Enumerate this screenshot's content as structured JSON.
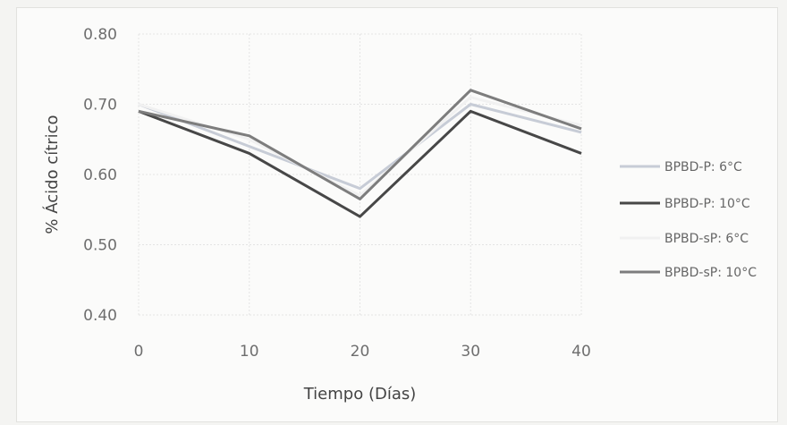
{
  "chart_data": {
    "type": "line",
    "xlabel": "Tiempo (Días)",
    "ylabel": "% Ácido cítrico",
    "x": [
      0,
      10,
      20,
      30,
      40
    ],
    "ylim": [
      0.4,
      0.8
    ],
    "xlim": [
      0,
      40
    ],
    "yticks": [
      "0.40",
      "0.50",
      "0.60",
      "0.70",
      "0.80"
    ],
    "xticks": [
      "0",
      "10",
      "20",
      "30",
      "40"
    ],
    "grid": true,
    "legend_position": "right",
    "series": [
      {
        "name": "BPBD-P: 6°C",
        "color": "#c7ccd6",
        "values": [
          0.7,
          0.64,
          0.58,
          0.7,
          0.66
        ]
      },
      {
        "name": "BPBD-P: 10°C",
        "color": "#474747",
        "values": [
          0.69,
          0.63,
          0.54,
          0.69,
          0.63
        ]
      },
      {
        "name": "BPBD-sP: 6°C",
        "color": "#f1f1f1",
        "values": [
          0.7,
          0.65,
          0.57,
          0.71,
          0.67
        ]
      },
      {
        "name": "BPBD-sP: 10°C",
        "color": "#7d7d7d",
        "values": [
          0.69,
          0.655,
          0.565,
          0.72,
          0.665
        ]
      }
    ]
  }
}
